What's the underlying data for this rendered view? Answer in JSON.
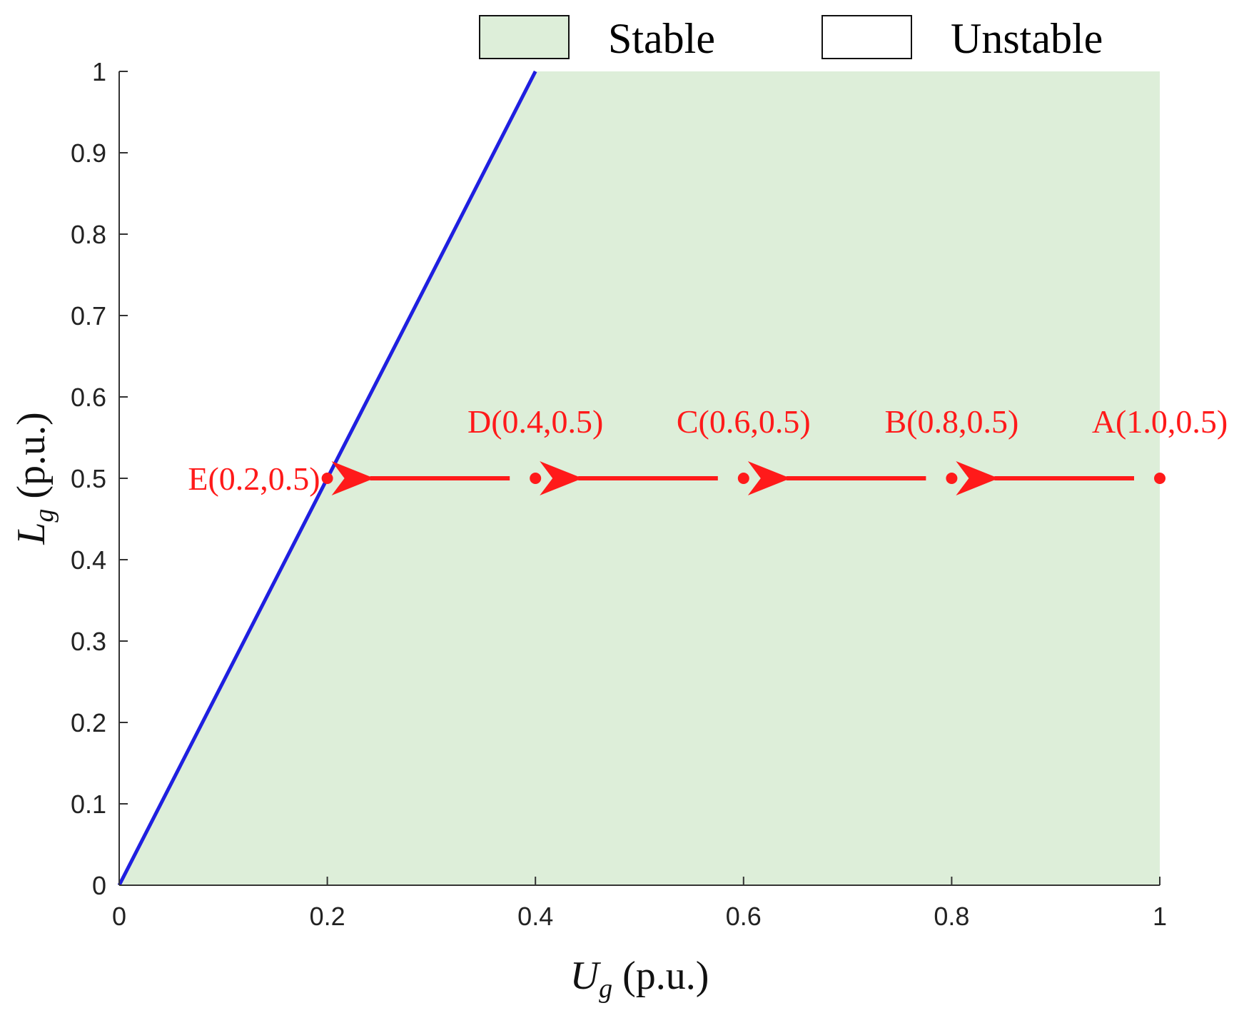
{
  "chart_data": {
    "type": "area",
    "xlim": [
      0,
      1
    ],
    "ylim": [
      0,
      1
    ],
    "xticks": [
      "0",
      "0.2",
      "0.4",
      "0.6",
      "0.8",
      "1"
    ],
    "yticks": [
      "0",
      "0.1",
      "0.2",
      "0.3",
      "0.4",
      "0.5",
      "0.6",
      "0.7",
      "0.8",
      "0.9",
      "1"
    ],
    "xlabel": {
      "main": "U",
      "sub": "g",
      "unit": " (p.u.)"
    },
    "ylabel": {
      "main": "L",
      "sub": "g",
      "unit": " (p.u.)"
    },
    "legend": {
      "position": "top",
      "entries": [
        {
          "label": "Stable",
          "color": "#ddeed9"
        },
        {
          "label": "Unstable",
          "color": "#ffffff"
        }
      ]
    },
    "boundary": {
      "color": "#1f1fe0",
      "x": [
        0,
        0.4
      ],
      "y": [
        0,
        1
      ]
    },
    "stable_region": {
      "color": "#ddeed9",
      "x": [
        0,
        0.4,
        1,
        1
      ],
      "y": [
        0,
        1,
        1,
        0
      ]
    },
    "points": [
      {
        "label": "A(1.0,0.5)",
        "x": 1.0,
        "y": 0.5
      },
      {
        "label": "B(0.8,0.5)",
        "x": 0.8,
        "y": 0.5
      },
      {
        "label": "C(0.6,0.5)",
        "x": 0.6,
        "y": 0.5
      },
      {
        "label": "D(0.4,0.5)",
        "x": 0.4,
        "y": 0.5
      },
      {
        "label": "E(0.2,0.5)",
        "x": 0.2,
        "y": 0.5
      }
    ],
    "point_color": "#ff1a1a",
    "grid": false
  }
}
